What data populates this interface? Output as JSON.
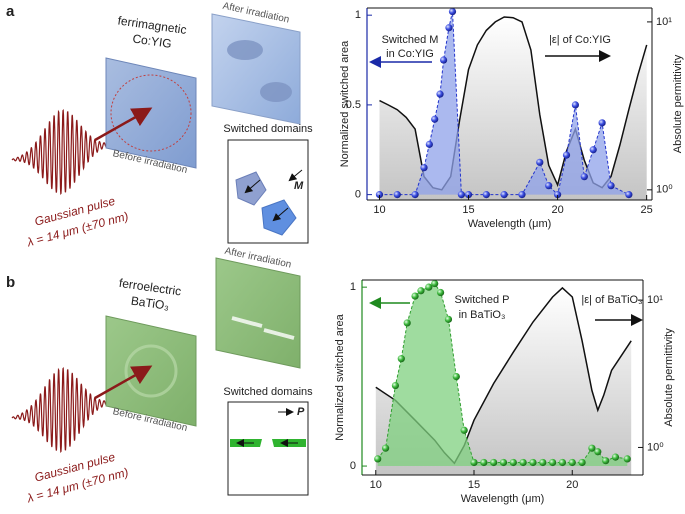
{
  "panels": [
    {
      "label": "a",
      "material": [
        "ferrimagnetic",
        "Co:YIG"
      ],
      "after": "After irradiation",
      "before": "Before irradiation",
      "pulse": [
        "Gaussian pulse",
        "λ = 14 μm (±70 nm)"
      ],
      "domains_title": "Switched domains",
      "domains_symbol": "M"
    },
    {
      "label": "b",
      "material": [
        "ferroelectric",
        "BaTiO₃"
      ],
      "after": "After irradiation",
      "before": "Before irradiation",
      "pulse": [
        "Gaussian pulse",
        "λ = 14 μm (±70 nm)"
      ],
      "domains_title": "Switched domains",
      "domains_symbol": "P"
    }
  ],
  "chart_data": [
    {
      "type": "line",
      "xlabel": "Wavelength (μm)",
      "ylabel": "Normalized switched area",
      "y2label": "Absolute permittivity",
      "xlim": [
        9.3,
        25.3
      ],
      "xticks": [
        10,
        15,
        20,
        25
      ],
      "ylim": [
        -0.03,
        1.04
      ],
      "yticks": [
        0,
        0.5,
        1
      ],
      "y2lim": [
        0.87,
        12.1
      ],
      "y2log": true,
      "y2ticks": [
        {
          "value": 1,
          "label": "10⁰"
        },
        {
          "value": 10,
          "label": "10¹"
        }
      ],
      "axis_color": "#1a2aa8",
      "annotations": [
        "Switched M",
        "in Co:YIG",
        "|ε| of Co:YIG"
      ],
      "series": [
        {
          "color": "#2233cc",
          "fill": "#8fa2ea",
          "x": [
            10,
            11,
            12,
            12.5,
            12.8,
            13.1,
            13.4,
            13.6,
            13.9,
            14.1,
            14.6,
            15,
            16,
            17,
            18,
            19,
            19.5,
            20,
            20.5,
            21,
            21.5,
            22,
            22.5,
            23,
            24
          ],
          "values": [
            0,
            0,
            0,
            0.15,
            0.28,
            0.42,
            0.56,
            0.75,
            0.93,
            1.02,
            0,
            0,
            0,
            0,
            0,
            0.18,
            0.05,
            0,
            0.22,
            0.5,
            0.1,
            0.25,
            0.4,
            0.05,
            0
          ]
        },
        {
          "color": "#111111",
          "axis": "y2",
          "x": [
            10,
            10.5,
            11,
            11.5,
            12,
            12.5,
            13,
            13.5,
            14,
            14.5,
            15,
            15.5,
            16,
            16.5,
            17,
            17.5,
            18,
            18.5,
            19,
            19.5,
            20,
            20.5,
            21,
            21.5,
            22,
            22.5,
            23,
            23.5,
            24,
            24.5,
            25
          ],
          "values": [
            3.4,
            3.2,
            3.0,
            2.7,
            2.3,
            1.2,
            1.03,
            1.0,
            1.2,
            2.6,
            5.2,
            7.3,
            8.9,
            10,
            10.7,
            10.6,
            10,
            6.8,
            2.8,
            1.4,
            1.07,
            1.7,
            2.3,
            1.5,
            1.1,
            1.03,
            1.2,
            1.85,
            3.0,
            4.8,
            7.3
          ]
        }
      ]
    },
    {
      "type": "line",
      "xlabel": "Wavelength (μm)",
      "ylabel": "Normalized switched area",
      "y2label": "Absolute permittivity",
      "xlim": [
        9.3,
        23.6
      ],
      "xticks": [
        10,
        15,
        20
      ],
      "ylim": [
        -0.05,
        1.04
      ],
      "yticks": [
        0,
        1
      ],
      "y2lim": [
        0.65,
        13.7
      ],
      "y2log": true,
      "y2ticks": [
        {
          "value": 1,
          "label": "10⁰"
        },
        {
          "value": 10,
          "label": "10¹"
        }
      ],
      "axis_color": "#1f8a1f",
      "annotations": [
        "Switched P",
        "in BaTiO₃",
        "|ε| of BaTiO₃"
      ],
      "series": [
        {
          "color": "#2f9e2f",
          "fill": "#7fd07f",
          "x": [
            10.1,
            10.5,
            11,
            11.3,
            11.6,
            12,
            12.3,
            12.7,
            13,
            13.3,
            13.7,
            14.1,
            14.5,
            15,
            15.5,
            16,
            16.5,
            17,
            17.5,
            18,
            18.5,
            19,
            19.5,
            20,
            20.5,
            21,
            21.3,
            21.7,
            22.2,
            22.8
          ],
          "values": [
            0.04,
            0.1,
            0.45,
            0.6,
            0.8,
            0.95,
            0.98,
            1.0,
            1.02,
            0.97,
            0.82,
            0.5,
            0.2,
            0.02,
            0.02,
            0.02,
            0.02,
            0.02,
            0.02,
            0.02,
            0.02,
            0.02,
            0.02,
            0.02,
            0.02,
            0.1,
            0.08,
            0.03,
            0.05,
            0.04
          ]
        },
        {
          "color": "#111111",
          "axis": "y2",
          "x": [
            10,
            11,
            12,
            13,
            13.5,
            14,
            14.5,
            15,
            16,
            17,
            18,
            19,
            19.5,
            20,
            20.5,
            21,
            21.3,
            21.6,
            22,
            23
          ],
          "values": [
            2.56,
            2.09,
            1.53,
            1.12,
            0.92,
            0.78,
            1.03,
            1.53,
            2.72,
            4.43,
            7.1,
            10.5,
            12.1,
            10.5,
            5.3,
            2.44,
            1.79,
            2.26,
            3.34,
            5.3
          ]
        }
      ]
    }
  ]
}
